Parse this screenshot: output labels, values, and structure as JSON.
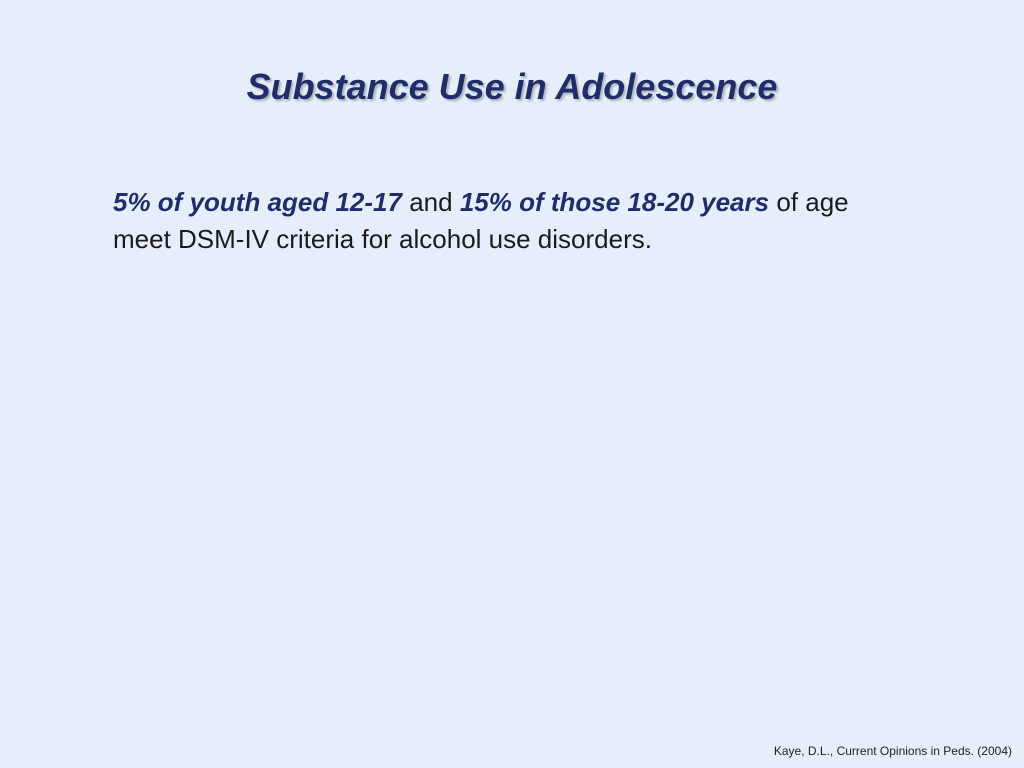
{
  "slide": {
    "title": "Substance Use in Adolescence",
    "body": {
      "runs": [
        {
          "text": "5% of youth aged 12-17",
          "emphasis": true
        },
        {
          "text": "and",
          "emphasis": false
        },
        {
          "text": "15% of those 18-20 years",
          "emphasis": true
        },
        {
          "text": "of age meet DSM-IV criteria for alcohol use disorders.",
          "emphasis": false
        }
      ]
    },
    "citation": "Kaye, D.L., Current Opinions in Peds. (2004)"
  }
}
